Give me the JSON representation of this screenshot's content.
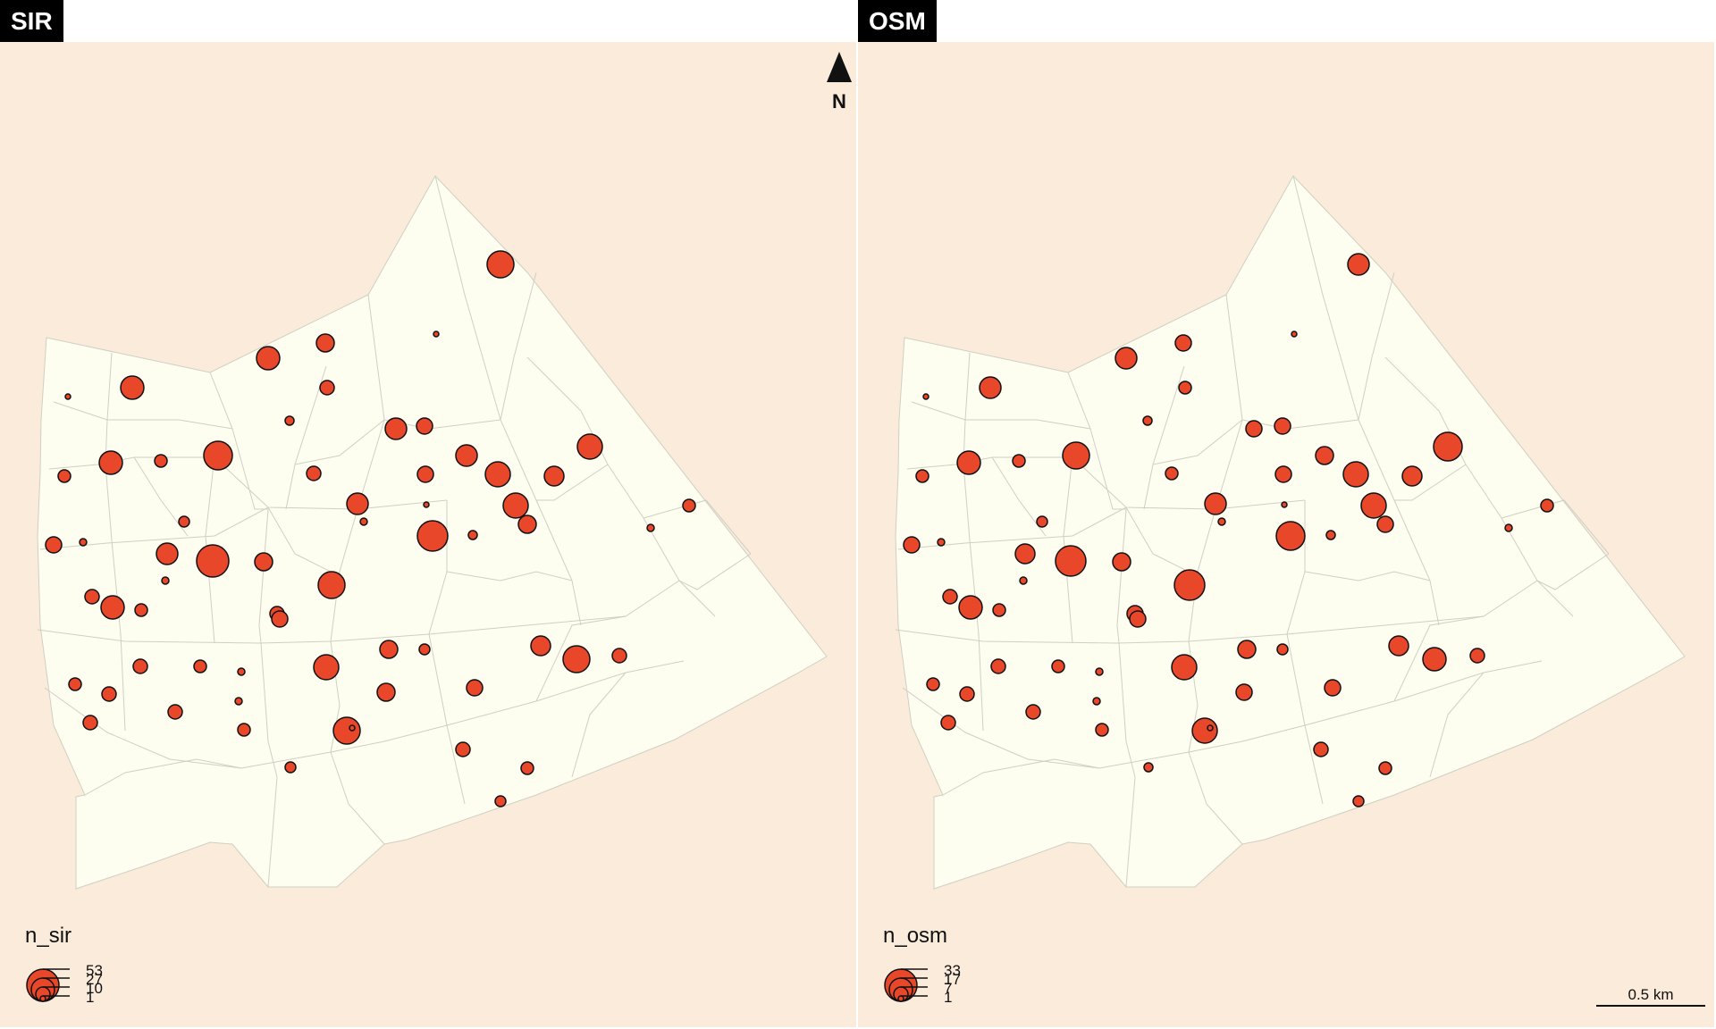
{
  "colors": {
    "background": "#fbebda",
    "region_fill": "#fdfdf0",
    "region_stroke": "#cfcfc4",
    "bubble_fill": "#e8472a",
    "bubble_stroke": "#111111"
  },
  "panels": [
    {
      "title": "SIR",
      "legend_title": "n_sir",
      "legend_values": [
        "53",
        "27",
        "10",
        "1"
      ]
    },
    {
      "title": "OSM",
      "legend_title": "n_osm",
      "legend_values": [
        "33",
        "17",
        "7",
        "1"
      ]
    }
  ],
  "north_arrow": {
    "label": "N",
    "icon": "north-arrow-icon"
  },
  "scale_bar": {
    "label": "0.5 km"
  }
}
